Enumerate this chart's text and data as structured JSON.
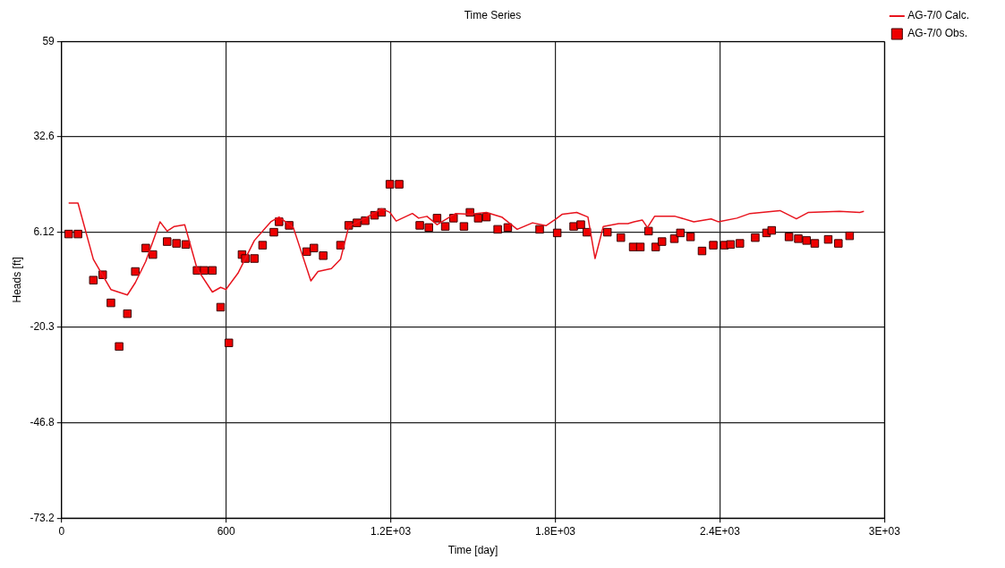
{
  "chart_data": {
    "type": "line",
    "title": "Time Series",
    "xlabel": "Time [day]",
    "ylabel": "Heads [ft]",
    "xlim": [
      0,
      3000
    ],
    "xticks": [
      0,
      600,
      {
        "value": 1200,
        "label": "1.2E+03"
      },
      {
        "value": 1800,
        "label": "1.8E+03"
      },
      {
        "value": 2400,
        "label": "2.4E+03"
      },
      {
        "value": 3000,
        "label": "3E+03"
      }
    ],
    "ylim": [
      -73.2,
      59
    ],
    "yticks": [
      -73.2,
      -46.8,
      -20.3,
      6.12,
      32.6,
      59
    ],
    "grid": true,
    "legend": "top right",
    "series": [
      {
        "name": "AG-7/0 Calc.",
        "color": "#e8141e",
        "marker": "none",
        "line_style": "solid",
        "x": [
          26,
          60,
          116,
          180,
          240,
          269,
          307,
          359,
          385,
          411,
          449,
          494,
          550,
          580,
          599,
          643,
          703,
          763,
          793,
          845,
          909,
          935,
          984,
          1017,
          1047,
          1107,
          1167,
          1197,
          1220,
          1279,
          1302,
          1332,
          1369,
          1437,
          1489,
          1549,
          1605,
          1661,
          1717,
          1766,
          1803,
          1826,
          1878,
          1919,
          1945,
          1975,
          2031,
          2065,
          2087,
          2117,
          2136,
          2162,
          2237,
          2305,
          2368,
          2394,
          2462,
          2510,
          2619,
          2679,
          2723,
          2836,
          2910,
          2925
        ],
        "values": [
          14.2,
          14.2,
          -1.4,
          -9.8,
          -11.3,
          -7.9,
          -2.0,
          9.0,
          6.4,
          7.7,
          8.2,
          -4.0,
          -10.5,
          -9.2,
          -9.8,
          -5.3,
          3.8,
          9.0,
          10.3,
          7.4,
          -7.4,
          -4.8,
          -4.0,
          -1.4,
          7.7,
          10.0,
          12.6,
          11.6,
          9.2,
          11.3,
          10.0,
          10.5,
          8.2,
          11.3,
          11.1,
          11.6,
          10.3,
          6.9,
          8.7,
          7.9,
          9.8,
          11.1,
          11.6,
          10.3,
          -1.2,
          7.7,
          8.5,
          8.5,
          9.0,
          9.5,
          7.4,
          10.5,
          10.5,
          9.0,
          9.8,
          9.0,
          10.0,
          11.3,
          12.1,
          9.8,
          11.6,
          11.9,
          11.6,
          11.9
        ]
      },
      {
        "name": "AG-7/0 Obs.",
        "type": "scatter",
        "color": "#ee0000",
        "marker": "square",
        "x": [
          26,
          60,
          116,
          150,
          180,
          210,
          240,
          269,
          307,
          333,
          385,
          419,
          453,
          494,
          520,
          550,
          580,
          610,
          658,
          670,
          703,
          733,
          774,
          793,
          830,
          894,
          920,
          954,
          1017,
          1047,
          1077,
          1107,
          1141,
          1167,
          1197,
          1231,
          1306,
          1339,
          1369,
          1399,
          1429,
          1467,
          1489,
          1519,
          1549,
          1590,
          1627,
          1743,
          1807,
          1867,
          1893,
          1915,
          1990,
          2039,
          2084,
          2110,
          2140,
          2166,
          2189,
          2234,
          2256,
          2293,
          2335,
          2376,
          2417,
          2439,
          2473,
          2529,
          2570,
          2589,
          2652,
          2686,
          2716,
          2746,
          2795,
          2832,
          2873
        ],
        "values": [
          5.6,
          5.6,
          -7.2,
          -5.7,
          -13.5,
          -25.6,
          -16.5,
          -4.8,
          1.7,
          -0.1,
          3.5,
          3.0,
          2.7,
          -4.5,
          -4.5,
          -4.5,
          -14.7,
          -24.6,
          -0.1,
          -1.2,
          -1.2,
          2.5,
          6.1,
          9.0,
          8.0,
          0.7,
          1.7,
          -0.4,
          2.5,
          8.0,
          8.7,
          9.3,
          10.8,
          11.6,
          19.4,
          19.4,
          8.0,
          7.4,
          10.0,
          7.7,
          10.0,
          7.7,
          11.6,
          10.0,
          10.3,
          6.9,
          7.4,
          6.9,
          5.9,
          7.7,
          8.2,
          6.1,
          6.1,
          4.6,
          2.0,
          2.0,
          6.4,
          2.0,
          3.5,
          4.3,
          5.9,
          4.8,
          0.9,
          2.5,
          2.5,
          2.7,
          3.0,
          4.6,
          5.9,
          6.6,
          4.8,
          4.3,
          3.8,
          3.0,
          4.1,
          3.0,
          5.1
        ]
      }
    ]
  }
}
